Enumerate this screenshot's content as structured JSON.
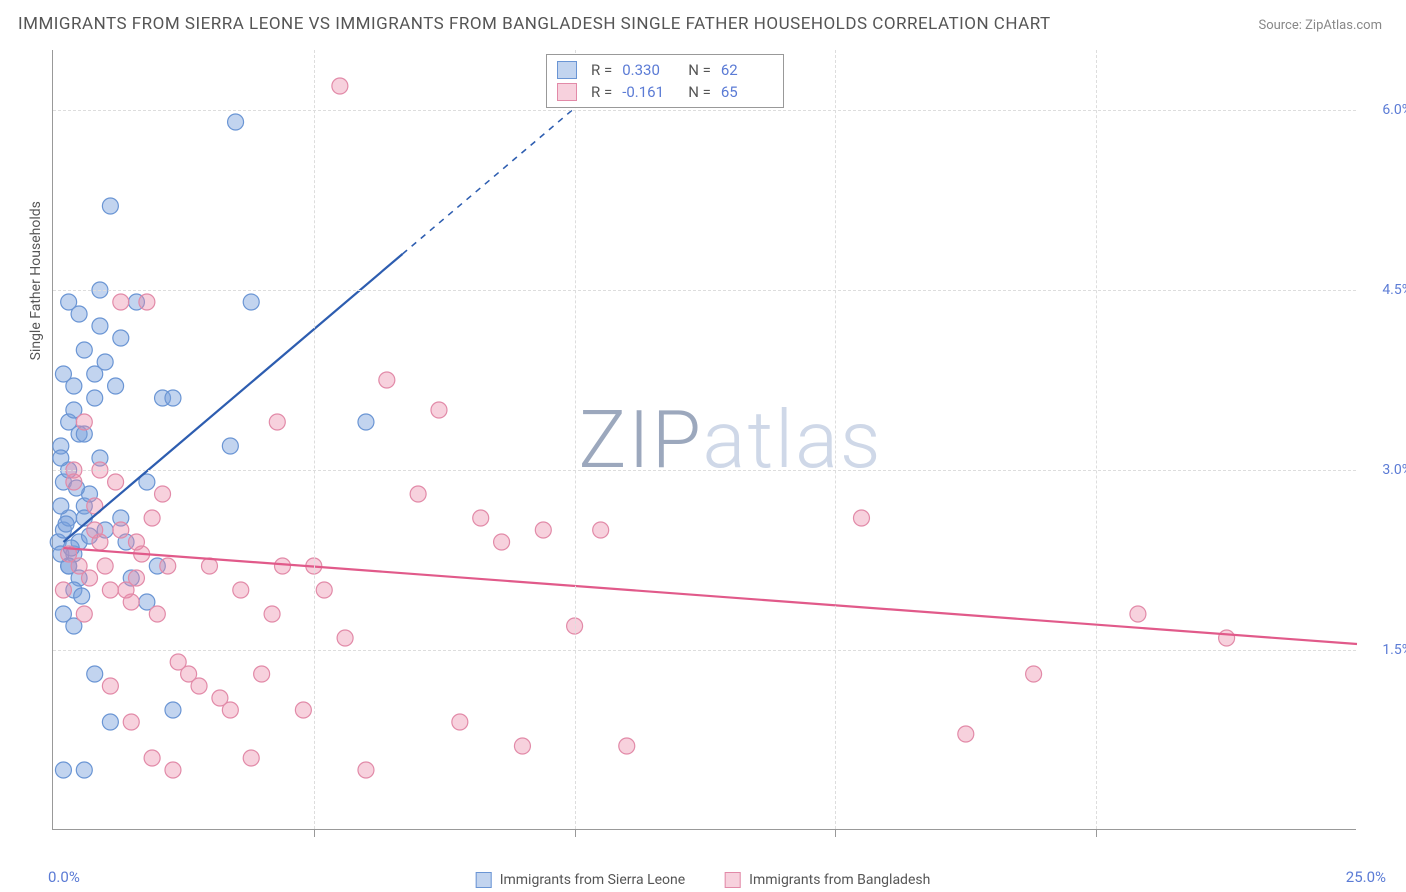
{
  "title": "IMMIGRANTS FROM SIERRA LEONE VS IMMIGRANTS FROM BANGLADESH SINGLE FATHER HOUSEHOLDS CORRELATION CHART",
  "source": "Source: ZipAtlas.com",
  "watermark_prefix": "ZIP",
  "watermark_suffix": "atlas",
  "y_axis_title": "Single Father Households",
  "x_axis": {
    "min_label": "0.0%",
    "max_label": "25.0%",
    "min": 0,
    "max": 25,
    "tick_step": 5
  },
  "y_axis": {
    "min": 0,
    "max": 6.5,
    "ticks": [
      1.5,
      3.0,
      4.5,
      6.0
    ],
    "tick_labels": [
      "1.5%",
      "3.0%",
      "4.5%",
      "6.0%"
    ]
  },
  "series": [
    {
      "name": "Immigrants from Sierra Leone",
      "color_fill": "rgba(120,160,220,0.45)",
      "color_stroke": "#6a95d4",
      "line_color": "#2d5db0",
      "r_label": "R =",
      "r_value": "0.330",
      "n_label": "N =",
      "n_value": "62",
      "trend": {
        "x1": 0.2,
        "y1": 2.4,
        "x2": 6.7,
        "y2": 4.8,
        "x2_dash": 10.5,
        "y2_dash": 6.2
      },
      "points": [
        [
          0.1,
          2.4
        ],
        [
          0.2,
          2.5
        ],
        [
          0.3,
          2.6
        ],
        [
          0.15,
          2.7
        ],
        [
          0.4,
          2.3
        ],
        [
          0.3,
          2.2
        ],
        [
          0.5,
          2.4
        ],
        [
          0.2,
          2.9
        ],
        [
          0.3,
          3.0
        ],
        [
          0.15,
          3.2
        ],
        [
          0.5,
          3.3
        ],
        [
          0.3,
          3.4
        ],
        [
          0.6,
          2.7
        ],
        [
          0.7,
          2.8
        ],
        [
          0.8,
          3.6
        ],
        [
          0.4,
          3.7
        ],
        [
          0.2,
          3.8
        ],
        [
          1.0,
          3.9
        ],
        [
          0.6,
          4.0
        ],
        [
          1.3,
          4.1
        ],
        [
          0.9,
          4.2
        ],
        [
          0.5,
          4.3
        ],
        [
          1.6,
          4.4
        ],
        [
          3.8,
          4.4
        ],
        [
          1.1,
          5.2
        ],
        [
          3.5,
          5.9
        ],
        [
          3.4,
          3.2
        ],
        [
          6.0,
          3.4
        ],
        [
          1.8,
          2.9
        ],
        [
          2.1,
          3.6
        ],
        [
          2.3,
          3.6
        ],
        [
          1.5,
          2.1
        ],
        [
          1.8,
          1.9
        ],
        [
          1.3,
          2.6
        ],
        [
          2.0,
          2.2
        ],
        [
          0.2,
          1.8
        ],
        [
          0.4,
          1.7
        ],
        [
          0.8,
          1.3
        ],
        [
          1.1,
          0.9
        ],
        [
          0.2,
          0.5
        ],
        [
          0.6,
          0.5
        ],
        [
          2.3,
          1.0
        ],
        [
          0.3,
          2.2
        ],
        [
          0.5,
          2.1
        ],
        [
          0.7,
          2.45
        ],
        [
          0.25,
          2.55
        ],
        [
          0.4,
          2.0
        ],
        [
          1.0,
          2.5
        ],
        [
          0.15,
          2.3
        ],
        [
          0.6,
          2.6
        ],
        [
          0.9,
          3.1
        ],
        [
          0.4,
          3.5
        ],
        [
          0.8,
          3.8
        ],
        [
          1.2,
          3.7
        ],
        [
          0.3,
          4.4
        ],
        [
          0.9,
          4.5
        ],
        [
          0.15,
          3.1
        ],
        [
          0.45,
          2.85
        ],
        [
          0.6,
          3.3
        ],
        [
          0.35,
          2.35
        ],
        [
          1.4,
          2.4
        ],
        [
          0.55,
          1.95
        ]
      ]
    },
    {
      "name": "Immigrants from Bangladesh",
      "color_fill": "rgba(235,140,170,0.40)",
      "color_stroke": "#e28aa8",
      "line_color": "#e15a8a",
      "r_label": "R =",
      "r_value": "-0.161",
      "n_label": "N =",
      "n_value": "65",
      "trend": {
        "x1": 0.2,
        "y1": 2.35,
        "x2": 25.0,
        "y2": 1.55
      },
      "points": [
        [
          0.3,
          2.3
        ],
        [
          0.5,
          2.2
        ],
        [
          0.7,
          2.1
        ],
        [
          0.9,
          2.4
        ],
        [
          1.1,
          2.0
        ],
        [
          1.3,
          2.5
        ],
        [
          1.5,
          1.9
        ],
        [
          1.7,
          2.3
        ],
        [
          1.9,
          2.6
        ],
        [
          2.1,
          2.8
        ],
        [
          0.4,
          2.9
        ],
        [
          0.8,
          2.7
        ],
        [
          1.2,
          2.9
        ],
        [
          1.6,
          2.1
        ],
        [
          2.0,
          1.8
        ],
        [
          2.4,
          1.4
        ],
        [
          2.8,
          1.2
        ],
        [
          3.2,
          1.1
        ],
        [
          3.6,
          2.0
        ],
        [
          4.0,
          1.3
        ],
        [
          4.4,
          2.2
        ],
        [
          4.8,
          1.0
        ],
        [
          5.2,
          2.0
        ],
        [
          5.6,
          1.6
        ],
        [
          6.0,
          0.5
        ],
        [
          6.4,
          3.75
        ],
        [
          7.0,
          2.8
        ],
        [
          7.4,
          3.5
        ],
        [
          7.8,
          0.9
        ],
        [
          8.2,
          2.6
        ],
        [
          8.6,
          2.4
        ],
        [
          9.0,
          0.7
        ],
        [
          9.4,
          2.5
        ],
        [
          10.0,
          1.7
        ],
        [
          10.5,
          2.5
        ],
        [
          11.0,
          0.7
        ],
        [
          15.5,
          2.6
        ],
        [
          17.5,
          0.8
        ],
        [
          18.8,
          1.3
        ],
        [
          20.8,
          1.8
        ],
        [
          22.5,
          1.6
        ],
        [
          5.5,
          6.2
        ],
        [
          1.8,
          4.4
        ],
        [
          4.3,
          3.4
        ],
        [
          1.3,
          4.4
        ],
        [
          0.6,
          3.4
        ],
        [
          0.4,
          3.0
        ],
        [
          0.9,
          3.0
        ],
        [
          1.1,
          1.2
        ],
        [
          1.5,
          0.9
        ],
        [
          1.9,
          0.6
        ],
        [
          2.3,
          0.5
        ],
        [
          3.0,
          2.2
        ],
        [
          3.4,
          1.0
        ],
        [
          3.8,
          0.6
        ],
        [
          4.2,
          1.8
        ],
        [
          5.0,
          2.2
        ],
        [
          2.6,
          1.3
        ],
        [
          0.2,
          2.0
        ],
        [
          0.6,
          1.8
        ],
        [
          0.8,
          2.5
        ],
        [
          1.0,
          2.2
        ],
        [
          1.4,
          2.0
        ],
        [
          1.6,
          2.4
        ],
        [
          2.2,
          2.2
        ]
      ]
    }
  ],
  "legend": [
    {
      "label": "Immigrants from Sierra Leone",
      "fill": "rgba(120,160,220,0.45)",
      "stroke": "#6a95d4"
    },
    {
      "label": "Immigrants from Bangladesh",
      "fill": "rgba(235,140,170,0.40)",
      "stroke": "#e28aa8"
    }
  ],
  "styling": {
    "marker_radius": 8,
    "marker_stroke_width": 1.2,
    "trend_line_width": 2.2,
    "background": "#ffffff",
    "grid_color": "#dddddd",
    "axis_color": "#999999",
    "label_color": "#5b7bd5"
  }
}
